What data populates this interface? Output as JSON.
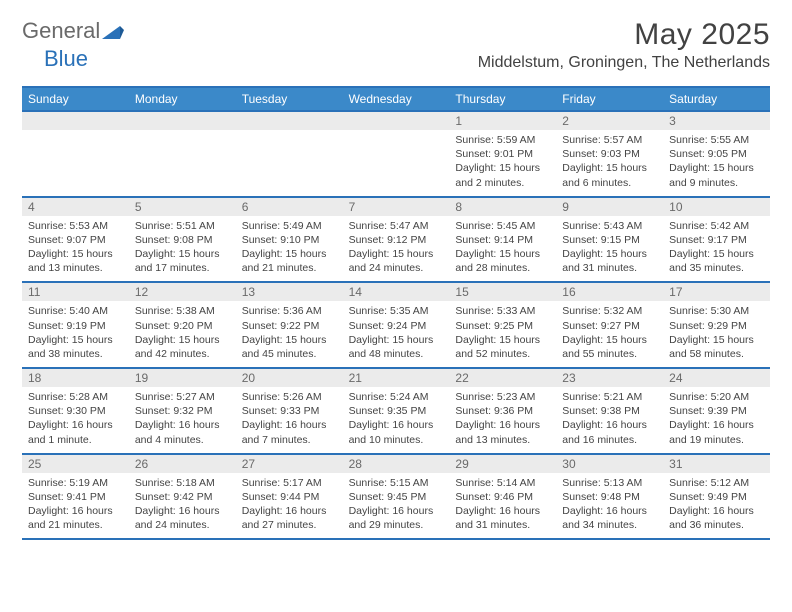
{
  "logo": {
    "general": "General",
    "blue": "Blue"
  },
  "title": "May 2025",
  "location": "Middelstum, Groningen, The Netherlands",
  "colors": {
    "header_bg": "#3b89c9",
    "border": "#2a71b8",
    "daynum_bg": "#ebebeb",
    "text_muted": "#6a6a6a",
    "text": "#444444"
  },
  "weekdays": [
    "Sunday",
    "Monday",
    "Tuesday",
    "Wednesday",
    "Thursday",
    "Friday",
    "Saturday"
  ],
  "weeks": [
    [
      {
        "n": "",
        "sr": "",
        "ss": "",
        "dl": ""
      },
      {
        "n": "",
        "sr": "",
        "ss": "",
        "dl": ""
      },
      {
        "n": "",
        "sr": "",
        "ss": "",
        "dl": ""
      },
      {
        "n": "",
        "sr": "",
        "ss": "",
        "dl": ""
      },
      {
        "n": "1",
        "sr": "Sunrise: 5:59 AM",
        "ss": "Sunset: 9:01 PM",
        "dl": "Daylight: 15 hours and 2 minutes."
      },
      {
        "n": "2",
        "sr": "Sunrise: 5:57 AM",
        "ss": "Sunset: 9:03 PM",
        "dl": "Daylight: 15 hours and 6 minutes."
      },
      {
        "n": "3",
        "sr": "Sunrise: 5:55 AM",
        "ss": "Sunset: 9:05 PM",
        "dl": "Daylight: 15 hours and 9 minutes."
      }
    ],
    [
      {
        "n": "4",
        "sr": "Sunrise: 5:53 AM",
        "ss": "Sunset: 9:07 PM",
        "dl": "Daylight: 15 hours and 13 minutes."
      },
      {
        "n": "5",
        "sr": "Sunrise: 5:51 AM",
        "ss": "Sunset: 9:08 PM",
        "dl": "Daylight: 15 hours and 17 minutes."
      },
      {
        "n": "6",
        "sr": "Sunrise: 5:49 AM",
        "ss": "Sunset: 9:10 PM",
        "dl": "Daylight: 15 hours and 21 minutes."
      },
      {
        "n": "7",
        "sr": "Sunrise: 5:47 AM",
        "ss": "Sunset: 9:12 PM",
        "dl": "Daylight: 15 hours and 24 minutes."
      },
      {
        "n": "8",
        "sr": "Sunrise: 5:45 AM",
        "ss": "Sunset: 9:14 PM",
        "dl": "Daylight: 15 hours and 28 minutes."
      },
      {
        "n": "9",
        "sr": "Sunrise: 5:43 AM",
        "ss": "Sunset: 9:15 PM",
        "dl": "Daylight: 15 hours and 31 minutes."
      },
      {
        "n": "10",
        "sr": "Sunrise: 5:42 AM",
        "ss": "Sunset: 9:17 PM",
        "dl": "Daylight: 15 hours and 35 minutes."
      }
    ],
    [
      {
        "n": "11",
        "sr": "Sunrise: 5:40 AM",
        "ss": "Sunset: 9:19 PM",
        "dl": "Daylight: 15 hours and 38 minutes."
      },
      {
        "n": "12",
        "sr": "Sunrise: 5:38 AM",
        "ss": "Sunset: 9:20 PM",
        "dl": "Daylight: 15 hours and 42 minutes."
      },
      {
        "n": "13",
        "sr": "Sunrise: 5:36 AM",
        "ss": "Sunset: 9:22 PM",
        "dl": "Daylight: 15 hours and 45 minutes."
      },
      {
        "n": "14",
        "sr": "Sunrise: 5:35 AM",
        "ss": "Sunset: 9:24 PM",
        "dl": "Daylight: 15 hours and 48 minutes."
      },
      {
        "n": "15",
        "sr": "Sunrise: 5:33 AM",
        "ss": "Sunset: 9:25 PM",
        "dl": "Daylight: 15 hours and 52 minutes."
      },
      {
        "n": "16",
        "sr": "Sunrise: 5:32 AM",
        "ss": "Sunset: 9:27 PM",
        "dl": "Daylight: 15 hours and 55 minutes."
      },
      {
        "n": "17",
        "sr": "Sunrise: 5:30 AM",
        "ss": "Sunset: 9:29 PM",
        "dl": "Daylight: 15 hours and 58 minutes."
      }
    ],
    [
      {
        "n": "18",
        "sr": "Sunrise: 5:28 AM",
        "ss": "Sunset: 9:30 PM",
        "dl": "Daylight: 16 hours and 1 minute."
      },
      {
        "n": "19",
        "sr": "Sunrise: 5:27 AM",
        "ss": "Sunset: 9:32 PM",
        "dl": "Daylight: 16 hours and 4 minutes."
      },
      {
        "n": "20",
        "sr": "Sunrise: 5:26 AM",
        "ss": "Sunset: 9:33 PM",
        "dl": "Daylight: 16 hours and 7 minutes."
      },
      {
        "n": "21",
        "sr": "Sunrise: 5:24 AM",
        "ss": "Sunset: 9:35 PM",
        "dl": "Daylight: 16 hours and 10 minutes."
      },
      {
        "n": "22",
        "sr": "Sunrise: 5:23 AM",
        "ss": "Sunset: 9:36 PM",
        "dl": "Daylight: 16 hours and 13 minutes."
      },
      {
        "n": "23",
        "sr": "Sunrise: 5:21 AM",
        "ss": "Sunset: 9:38 PM",
        "dl": "Daylight: 16 hours and 16 minutes."
      },
      {
        "n": "24",
        "sr": "Sunrise: 5:20 AM",
        "ss": "Sunset: 9:39 PM",
        "dl": "Daylight: 16 hours and 19 minutes."
      }
    ],
    [
      {
        "n": "25",
        "sr": "Sunrise: 5:19 AM",
        "ss": "Sunset: 9:41 PM",
        "dl": "Daylight: 16 hours and 21 minutes."
      },
      {
        "n": "26",
        "sr": "Sunrise: 5:18 AM",
        "ss": "Sunset: 9:42 PM",
        "dl": "Daylight: 16 hours and 24 minutes."
      },
      {
        "n": "27",
        "sr": "Sunrise: 5:17 AM",
        "ss": "Sunset: 9:44 PM",
        "dl": "Daylight: 16 hours and 27 minutes."
      },
      {
        "n": "28",
        "sr": "Sunrise: 5:15 AM",
        "ss": "Sunset: 9:45 PM",
        "dl": "Daylight: 16 hours and 29 minutes."
      },
      {
        "n": "29",
        "sr": "Sunrise: 5:14 AM",
        "ss": "Sunset: 9:46 PM",
        "dl": "Daylight: 16 hours and 31 minutes."
      },
      {
        "n": "30",
        "sr": "Sunrise: 5:13 AM",
        "ss": "Sunset: 9:48 PM",
        "dl": "Daylight: 16 hours and 34 minutes."
      },
      {
        "n": "31",
        "sr": "Sunrise: 5:12 AM",
        "ss": "Sunset: 9:49 PM",
        "dl": "Daylight: 16 hours and 36 minutes."
      }
    ]
  ]
}
